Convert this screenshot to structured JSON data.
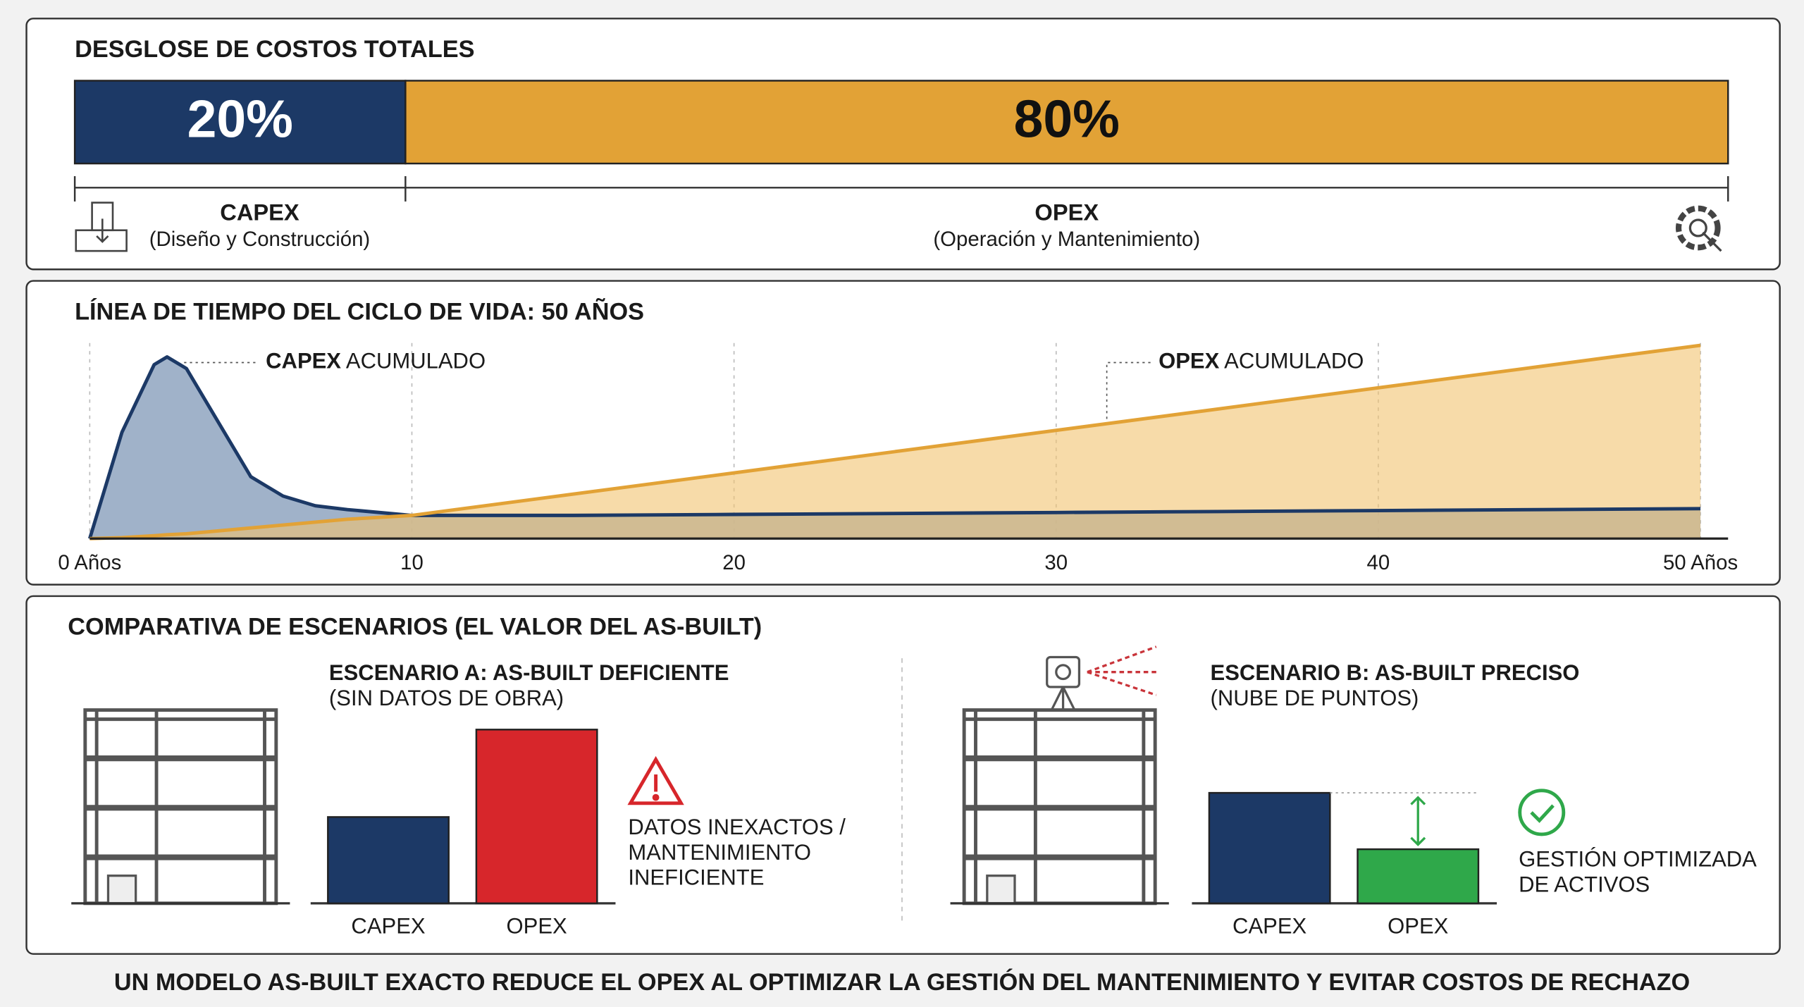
{
  "chart_data": [
    {
      "type": "stacked-bar",
      "title": "DESGLOSE DE COSTOS TOTALES",
      "xlim": [
        0,
        100
      ],
      "series": [
        {
          "name": "CAPEX",
          "description": "(Diseño y Construcción)",
          "color": "#1c3966",
          "values": [
            20
          ],
          "value_labels": [
            "20%"
          ]
        },
        {
          "name": "OPEX",
          "description": "(Operación y Mantenimiento)",
          "color": "#e2a236",
          "values": [
            80
          ],
          "value_labels": [
            "80%"
          ]
        }
      ]
    },
    {
      "type": "area",
      "title": "LÍNEA DE TIEMPO DEL CICLO DE VIDA: 50 AÑOS",
      "x": [
        0,
        1,
        2,
        2.4,
        3,
        4,
        5,
        6,
        7,
        8,
        10,
        15,
        20,
        25,
        30,
        35,
        40,
        45,
        50
      ],
      "xlim": [
        0,
        50
      ],
      "xticks": [
        {
          "value": 0,
          "label": "0 Años"
        },
        10,
        20,
        30,
        40,
        {
          "value": 50,
          "label": "50 Años"
        }
      ],
      "ylim": [
        0,
        100
      ],
      "grid": true,
      "series": [
        {
          "name": "CAPEX ACUMULADO",
          "color": "#1c3966",
          "fill": "#8fa5bf",
          "values": [
            0,
            55,
            90,
            94,
            88,
            60,
            32,
            22,
            17,
            15,
            12,
            12,
            12.5,
            13,
            13.5,
            14,
            14.5,
            15,
            15.5
          ]
        },
        {
          "name": "OPEX ACUMULADO",
          "color": "#e2a236",
          "fill": "#f1c36f",
          "values": [
            0,
            0.5,
            1.5,
            2,
            2.5,
            4,
            5.5,
            7,
            8.5,
            10,
            12,
            23,
            34,
            45,
            56,
            67,
            78,
            89,
            100
          ]
        }
      ]
    },
    {
      "type": "bar",
      "title": "ESCENARIO A: AS-BUILT DEFICIENTE",
      "subtitle": "(SIN DATOS DE OBRA)",
      "categories": [
        "CAPEX",
        "OPEX"
      ],
      "values": [
        75,
        151
      ],
      "colors": [
        "#1c3966",
        "#d7262b"
      ],
      "ylim": [
        0,
        160
      ],
      "annotation": [
        "DATOS INEXACTOS /",
        "MANTENIMIENTO",
        "INEFICIENTE"
      ]
    },
    {
      "type": "bar",
      "title": "ESCENARIO B: AS-BUILT PRECISO",
      "subtitle": "(NUBE DE PUNTOS)",
      "categories": [
        "CAPEX",
        "OPEX"
      ],
      "values": [
        96,
        47
      ],
      "colors": [
        "#1c3966",
        "#2fa84a"
      ],
      "ylim": [
        0,
        160
      ],
      "annotation": [
        "GESTIÓN OPTIMIZADA",
        "DE ACTIVOS"
      ]
    }
  ],
  "section_title": "COMPARATIVA DE ESCENARIOS (EL VALOR DEL AS-BUILT)",
  "footer": "UN MODELO AS-BUILT EXACTO REDUCE EL OPEX AL OPTIMIZAR LA GESTIÓN DEL MANTENIMIENTO Y EVITAR COSTOS DE RECHAZO"
}
